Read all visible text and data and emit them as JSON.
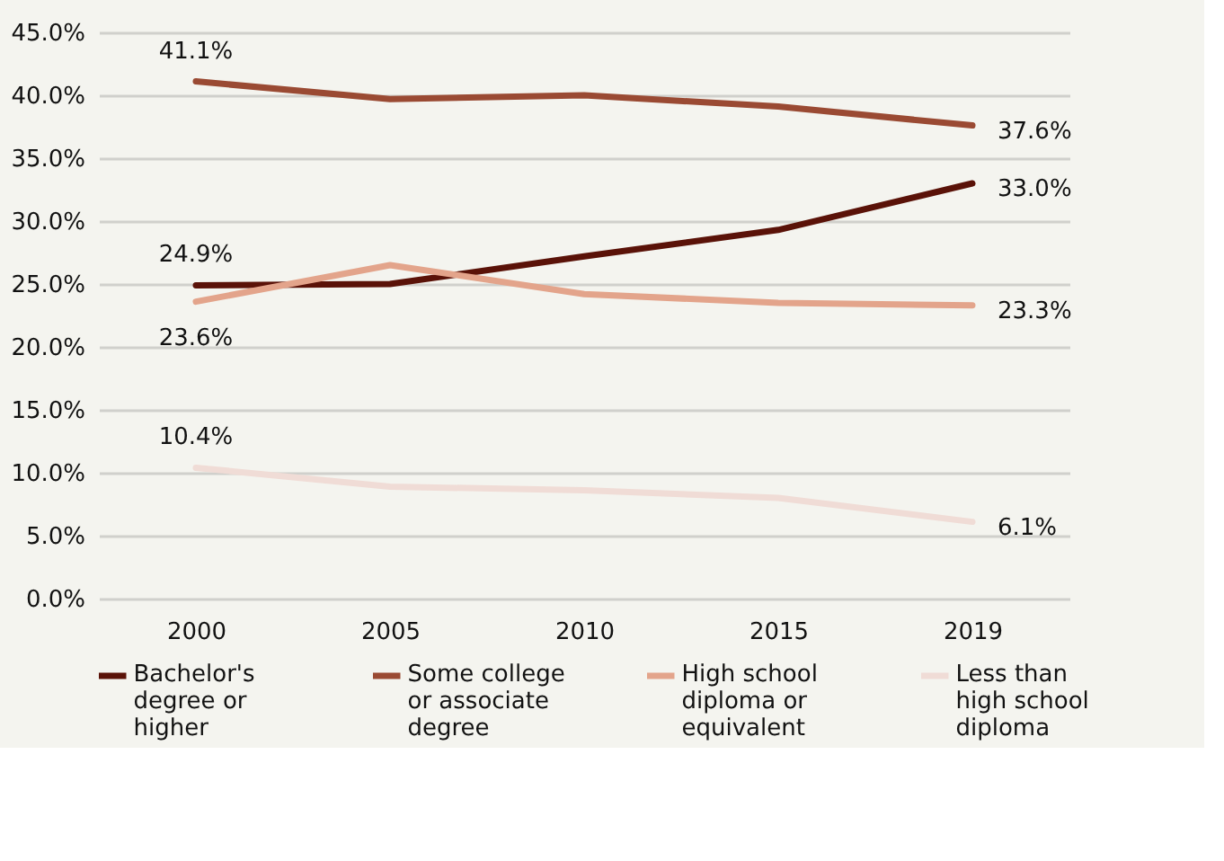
{
  "chart_data": {
    "type": "line",
    "categories": [
      "2000",
      "2005",
      "2010",
      "2015",
      "2019"
    ],
    "series": [
      {
        "name": "Bachelor's degree or higher",
        "color": "#5a1208",
        "values": [
          24.9,
          25.0,
          27.2,
          29.3,
          33.0
        ],
        "value_labels": [
          "24.9%",
          null,
          null,
          null,
          "33.0%"
        ]
      },
      {
        "name": "Some college or associate degree",
        "color": "#9a4a33",
        "values": [
          41.1,
          39.7,
          40.0,
          39.1,
          37.6
        ],
        "value_labels": [
          "41.1%",
          null,
          null,
          null,
          "37.6%"
        ]
      },
      {
        "name": "High school diploma or equivalent",
        "color": "#e3a48b",
        "values": [
          23.6,
          26.5,
          24.2,
          23.5,
          23.3
        ],
        "value_labels": [
          "23.6%",
          null,
          null,
          null,
          "23.3%"
        ]
      },
      {
        "name": "Less than high school diploma",
        "color": "#f0dcd6",
        "values": [
          10.4,
          8.9,
          8.6,
          8.0,
          6.1
        ],
        "value_labels": [
          "10.4%",
          null,
          null,
          null,
          "6.1%"
        ]
      }
    ],
    "ylim": [
      0,
      45
    ],
    "yticks": [
      {
        "value": 0,
        "label": "0.0%"
      },
      {
        "value": 5,
        "label": "5.0%"
      },
      {
        "value": 10,
        "label": "10.0%"
      },
      {
        "value": 15,
        "label": "15.0%"
      },
      {
        "value": 20,
        "label": "20.0%"
      },
      {
        "value": 25,
        "label": "25.0%"
      },
      {
        "value": 30,
        "label": "30.0%"
      },
      {
        "value": 35,
        "label": "35.0%"
      },
      {
        "value": 40,
        "label": "40.0%"
      },
      {
        "value": 45,
        "label": "45.0%"
      }
    ],
    "grid": "y",
    "legend": "bottom",
    "marker": "none",
    "line_style": "solid"
  }
}
